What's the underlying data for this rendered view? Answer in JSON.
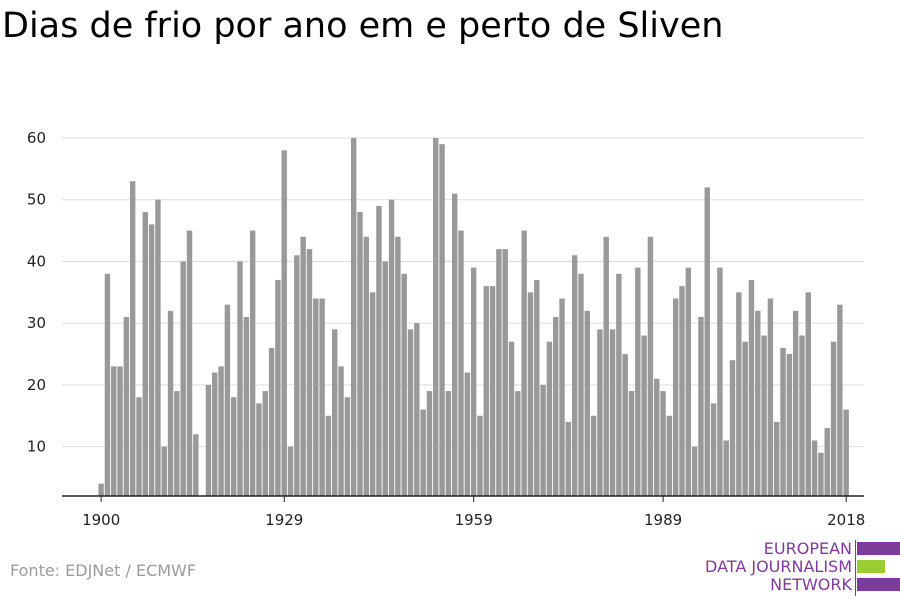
{
  "title": "Dias de frio por ano em e perto de Sliven",
  "source": "Fonte: EDJNet / ECMWF",
  "logo": {
    "lines": [
      "EUROPEAN",
      "DATA JOURNALISM",
      "NETWORK"
    ],
    "colors": {
      "purple": "#7d3c98",
      "green": "#9acd32"
    }
  },
  "chart_data": {
    "type": "bar",
    "title": "Dias de frio por ano em e perto de Sliven",
    "xlabel": "",
    "ylabel": "",
    "x_start": 1900,
    "x_end": 2021,
    "ylim": [
      2,
      60
    ],
    "yticks": [
      10,
      20,
      30,
      40,
      50,
      60
    ],
    "xticks": [
      1900,
      1929,
      1959,
      1989,
      2018
    ],
    "grid": true,
    "bar_color": "#999999",
    "categories": [
      1900,
      1901,
      1902,
      1903,
      1904,
      1905,
      1906,
      1907,
      1908,
      1909,
      1910,
      1911,
      1912,
      1913,
      1914,
      1915,
      1916,
      1917,
      1918,
      1919,
      1920,
      1921,
      1922,
      1923,
      1924,
      1925,
      1926,
      1927,
      1928,
      1929,
      1930,
      1931,
      1932,
      1933,
      1934,
      1935,
      1936,
      1937,
      1938,
      1939,
      1940,
      1941,
      1942,
      1943,
      1944,
      1945,
      1946,
      1947,
      1948,
      1949,
      1950,
      1951,
      1952,
      1953,
      1954,
      1955,
      1956,
      1957,
      1958,
      1959,
      1960,
      1961,
      1962,
      1963,
      1964,
      1965,
      1966,
      1967,
      1968,
      1969,
      1970,
      1971,
      1972,
      1973,
      1974,
      1975,
      1976,
      1977,
      1978,
      1979,
      1980,
      1981,
      1982,
      1983,
      1984,
      1985,
      1986,
      1987,
      1988,
      1989,
      1990,
      1991,
      1992,
      1993,
      1994,
      1995,
      1996,
      1997,
      1998,
      1999,
      2000,
      2001,
      2002,
      2003,
      2004,
      2005,
      2006,
      2007,
      2008,
      2009,
      2010,
      2011,
      2012,
      2013,
      2014,
      2015,
      2016,
      2017,
      2018,
      2019,
      2020
    ],
    "values": [
      4,
      38,
      23,
      23,
      31,
      53,
      18,
      48,
      46,
      50,
      10,
      32,
      19,
      40,
      45,
      12,
      null,
      20,
      22,
      23,
      33,
      18,
      40,
      31,
      45,
      17,
      19,
      26,
      37,
      58,
      10,
      41,
      44,
      42,
      34,
      34,
      15,
      29,
      23,
      18,
      60,
      48,
      44,
      35,
      49,
      40,
      50,
      44,
      38,
      29,
      30,
      16,
      19,
      60,
      59,
      19,
      51,
      45,
      22,
      39,
      15,
      36,
      36,
      42,
      42,
      27,
      19,
      45,
      35,
      37,
      20,
      27,
      31,
      34,
      14,
      41,
      38,
      32,
      15,
      29,
      44,
      29,
      38,
      25,
      19,
      39,
      28,
      44,
      21,
      19,
      15,
      34,
      36,
      39,
      10,
      31,
      52,
      17,
      39,
      11,
      24,
      35,
      27,
      37,
      32,
      28,
      34,
      14,
      26,
      25,
      32,
      28,
      35,
      11,
      9,
      13,
      27,
      33,
      16,
      null,
      null
    ]
  }
}
